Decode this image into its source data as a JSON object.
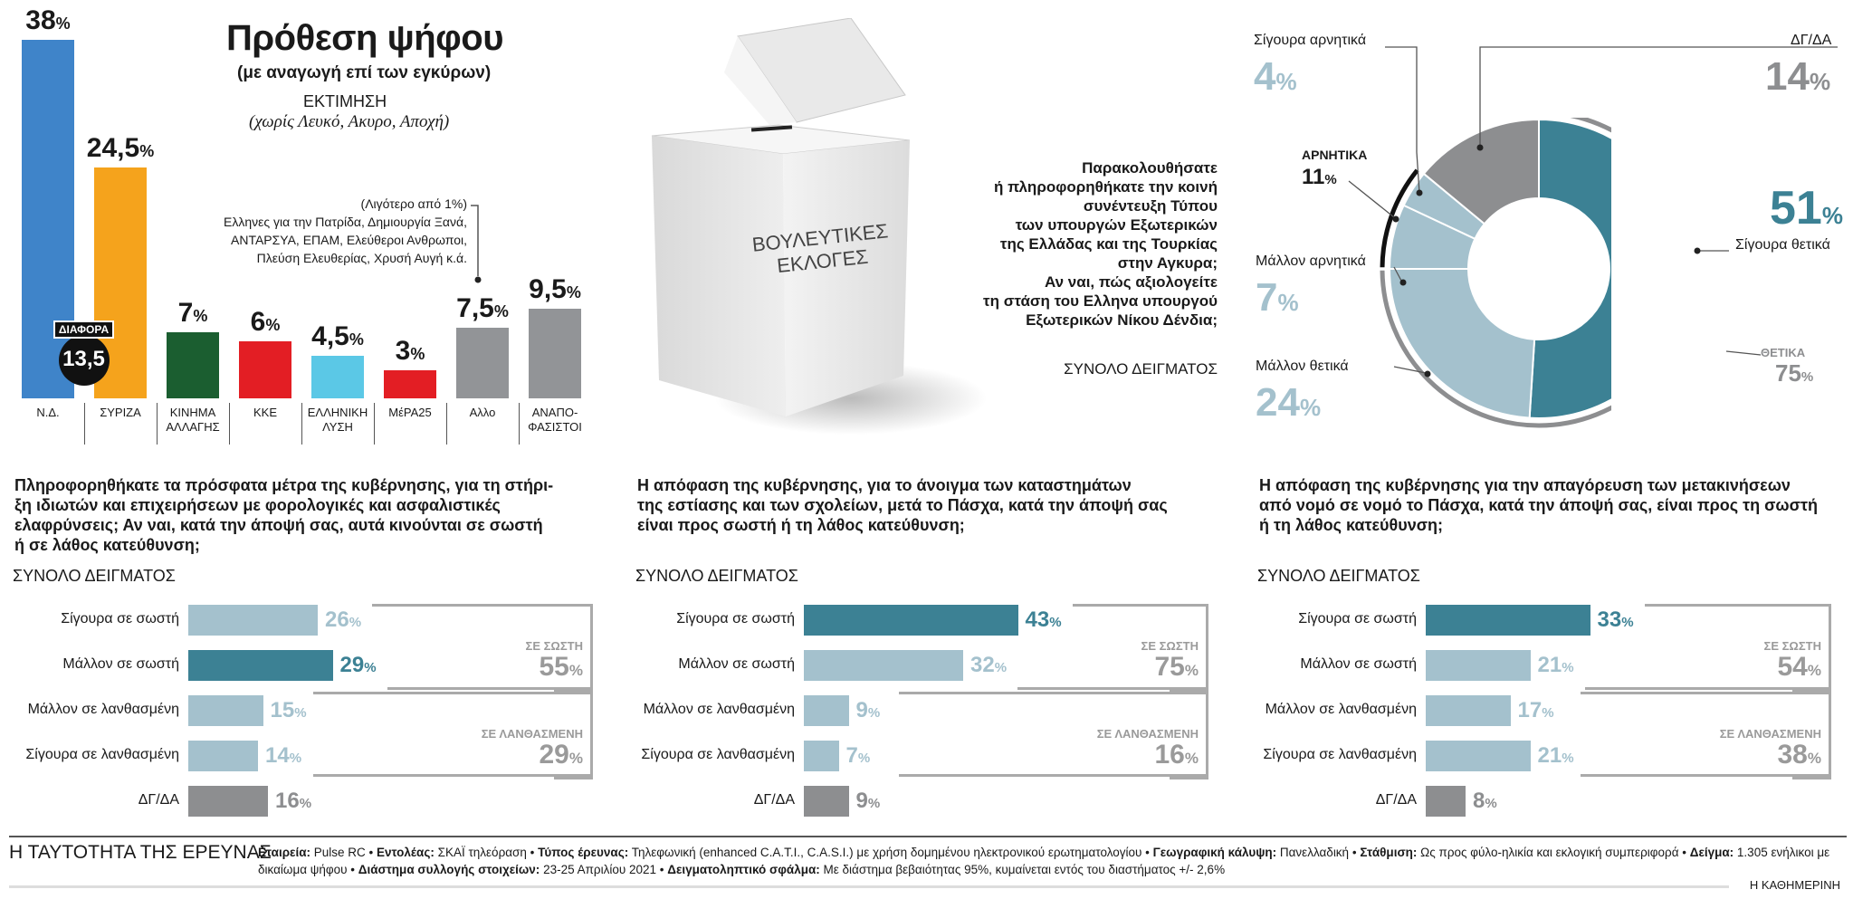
{
  "colors": {
    "nd": "#3f84c9",
    "syriza": "#f5a31c",
    "kinal": "#1b5e30",
    "kke": "#e31e24",
    "el": "#5bc8e6",
    "mera25": "#e31e24",
    "grey": "#929497",
    "teal": "#3c8194",
    "lightblue": "#a4c1cd",
    "darkgrey": "#8d8e90"
  },
  "header": {
    "title": "Πρόθεση ψήφου",
    "subtitle": "(με αναγωγή επί των εγκύρων)",
    "estimate": "ΕΚΤΙΜΗΣΗ",
    "note": "(χωρίς Λευκό, Ακυρο, Αποχή)"
  },
  "others_note": {
    "line1": "(Λιγότερο από 1%)",
    "line2": "Ελληνες για την Πατρίδα, Δημιουργία Ξανά,",
    "line3": "ΑΝΤΑΡΣΥΑ, ΕΠΑΜ, Ελεύθεροι Ανθρωποι,",
    "line4": "Πλεύση Ελευθερίας, Χρυσή Αυγή κ.ά."
  },
  "difference": {
    "label": "ΔΙΑΦΟΡΑ",
    "value": "13,5"
  },
  "chart_data": [
    {
      "type": "bar",
      "title": "Πρόθεση ψήφου",
      "categories": [
        "Ν.Δ.",
        "ΣΥΡΙΖΑ",
        "ΚΙΝΗΜΑ ΑΛΛΑΓΗΣ",
        "ΚΚΕ",
        "ΕΛΛΗΝΙΚΗ ΛΥΣΗ",
        "ΜέΡΑ25",
        "Αλλο",
        "ΑΝΑΠΟΦΑΣΙΣΤΟΙ"
      ],
      "category_lines": [
        [
          "Ν.Δ."
        ],
        [
          "ΣΥΡΙΖΑ"
        ],
        [
          "ΚΙΝΗΜΑ",
          "ΑΛΛΑΓΗΣ"
        ],
        [
          "ΚΚΕ"
        ],
        [
          "ΕΛΛΗΝΙΚΗ",
          "ΛΥΣΗ"
        ],
        [
          "ΜέΡΑ25"
        ],
        [
          "Αλλο"
        ],
        [
          "ΑΝΑΠΟ-",
          "ΦΑΣΙΣΤΟΙ"
        ]
      ],
      "values": [
        38,
        24.5,
        7,
        6,
        4.5,
        3,
        7.5,
        9.5
      ],
      "labels": [
        "38",
        "24,5",
        "7",
        "6",
        "4,5",
        "3",
        "7,5",
        "9,5"
      ],
      "colors": [
        "#3f84c9",
        "#f5a31c",
        "#1b5e30",
        "#e31e24",
        "#5bc8e6",
        "#e31e24",
        "#929497",
        "#929497"
      ],
      "unit": "%",
      "ylim": [
        0,
        38
      ]
    },
    {
      "type": "pie",
      "title": "Παρακολουθήσατε ή πληροφορηθήκατε την κοινή συνέντευξη Τύπου των υπουργών Εξωτερικών της Ελλάδας και της Τουρκίας στην Αγκυρα; Αν ναι, πώς αξιολογείτε τη στάση του Ελληνα υπουργού Εξωτερικών Νίκου Δένδια;",
      "categories": [
        "Σίγουρα θετικά",
        "Μάλλον θετικά",
        "Μάλλον αρνητικά",
        "Σίγουρα αρνητικά",
        "ΔΓ/ΔΑ"
      ],
      "values": [
        51,
        24,
        7,
        4,
        14
      ],
      "colors": [
        "#3c8194",
        "#a4c1cd",
        "#a4c1cd",
        "#a4c1cd",
        "#8d8e90"
      ],
      "groups": [
        {
          "label": "ΘΕΤΙΚΑ",
          "value": 75
        },
        {
          "label": "ΑΡΝΗΤΙΚΑ",
          "value": 11
        }
      ]
    },
    {
      "type": "bar",
      "orientation": "horizontal",
      "title": "Πληροφορηθήκατε τα πρόσφατα μέτρα της κυβέρνησης, για τη στήριξη ιδιωτών και επιχειρήσεων με φορολογικές και ασφαλιστικές ελαφρύνσεις; Αν ναι, κατά την άποψή σας, αυτά κινούνται σε σωστή ή σε λάθος κατεύθυνση;",
      "categories": [
        "Σίγουρα σε σωστή",
        "Μάλλον σε σωστή",
        "Μάλλον σε λανθασμένη",
        "Σίγουρα σε λανθασμένη",
        "ΔΓ/ΔΑ"
      ],
      "values": [
        26,
        29,
        15,
        14,
        16
      ],
      "highlight": 1,
      "groups": [
        {
          "label": "ΣΕ ΣΩΣΤΗ",
          "value": 55
        },
        {
          "label": "ΣΕ ΛΑΝΘΑΣΜΕΝΗ",
          "value": 29
        }
      ]
    },
    {
      "type": "bar",
      "orientation": "horizontal",
      "title": "Η απόφαση της κυβέρνησης, για το άνοιγμα των καταστημάτων της εστίασης και των σχολείων, μετά το Πάσχα, κατά την άποψή σας είναι προς σωστή ή τη λάθος κατεύθυνση;",
      "categories": [
        "Σίγουρα σε σωστή",
        "Μάλλον σε σωστή",
        "Μάλλον σε λανθασμένη",
        "Σίγουρα σε λανθασμένη",
        "ΔΓ/ΔΑ"
      ],
      "values": [
        43,
        32,
        9,
        7,
        9
      ],
      "highlight": 0,
      "groups": [
        {
          "label": "ΣΕ ΣΩΣΤΗ",
          "value": 75
        },
        {
          "label": "ΣΕ ΛΑΝΘΑΣΜΕΝΗ",
          "value": 16
        }
      ]
    },
    {
      "type": "bar",
      "orientation": "horizontal",
      "title": "Η απόφαση της κυβέρνησης για την απαγόρευση των μετακινήσεων από νομό σε νομό το Πάσχα, κατά την άποψή σας, είναι προς τη σωστή ή τη λάθος κατεύθυνση;",
      "categories": [
        "Σίγουρα σε σωστή",
        "Μάλλον σε σωστή",
        "Μάλλον σε λανθασμένη",
        "Σίγουρα σε λανθασμένη",
        "ΔΓ/ΔΑ"
      ],
      "values": [
        33,
        21,
        17,
        21,
        8
      ],
      "highlight": 0,
      "groups": [
        {
          "label": "ΣΕ ΣΩΣΤΗ",
          "value": 54
        },
        {
          "label": "ΣΕ ΛΑΝΘΑΣΜΕΝΗ",
          "value": 38
        }
      ]
    }
  ],
  "pct": "%",
  "sample_label": "ΣΥΝΟΛΟ ΔΕΙΓΜΑΤΟΣ",
  "ballot": {
    "line1": "ΒΟΥΛΕΥΤΙΚΕΣ",
    "line2": "ΕΚΛΟΓΕΣ"
  },
  "donut_question_lines": [
    "Παρακολουθήσατε",
    "ή πληροφορηθήκατε την κοινή",
    "συνέντευξη Τύπου",
    "των υπουργών Εξωτερικών",
    "της Ελλάδας και της Τουρκίας",
    "στην Αγκυρα;",
    "Αν ναι, πώς αξιολογείτε",
    "τη στάση του Ελληνα υπουργού",
    "Εξωτερικών Νίκου Δένδια;"
  ],
  "donut_labels": {
    "sig_arn": "Σίγουρα αρνητικά",
    "sig_arn_val": "4",
    "dgda": "ΔΓ/ΔΑ",
    "dgda_val": "14",
    "arn": "ΑΡΝΗΤΙΚΑ",
    "arn_val": "11",
    "sig_thet": "Σίγουρα θετικά",
    "sig_thet_val": "51",
    "mal_arn": "Μάλλον αρνητικά",
    "mal_arn_val": "7",
    "thet": "ΘΕΤΙΚΑ",
    "thet_val": "75",
    "mal_thet": "Μάλλον θετικά",
    "mal_thet_val": "24"
  },
  "h_questions": [
    [
      "Πληροφορηθήκατε τα πρόσφατα μέτρα της κυβέρνησης, για τη στήρι-",
      "ξη ιδιωτών και επιχειρήσεων με φορολογικές και ασφαλιστικές",
      "ελαφρύνσεις; Αν ναι, κατά την άποψή σας, αυτά κινούνται σε σωστή",
      "ή σε λάθος κατεύθυνση;"
    ],
    [
      "Η απόφαση της κυβέρνησης, για το άνοιγμα των καταστημάτων",
      "της εστίασης και των σχολείων, μετά το Πάσχα, κατά την άποψή σας",
      "είναι προς σωστή ή τη λάθος κατεύθυνση;"
    ],
    [
      "Η απόφαση της κυβέρνησης για την απαγόρευση των μετακινήσεων",
      "από νομό σε νομό το Πάσχα, κατά την άποψή σας, είναι προς τη σωστή",
      "ή τη λάθος κατεύθυνση;"
    ]
  ],
  "footer": {
    "title": "Η ΤΑΥΤΟΤΗΤΑ ΤΗΣ ΕΡΕΥΝΑΣ",
    "k1": "Εταιρεία:",
    "v1": " Pulse RC • ",
    "k2": "Εντολέας:",
    "v2": " ΣΚΑΪ τηλεόραση • ",
    "k3": "Τύπος έρευνας:",
    "v3": " Τηλεφωνική (enhanced C.A.T.I., C.A.S.I.) με χρήση δομημένου ηλεκτρονικού ερωτηματολογίου • ",
    "k4": "Γεωγραφική κάλυψη:",
    "v4": " Πανελλαδική • ",
    "k5": "Στάθμιση:",
    "v5": " Ως προς φύλο-ηλικία και εκλογική συμπεριφορά • ",
    "k6": "Δείγμα:",
    "v6": " 1.305 ενήλικοι με δικαίωμα ψήφου • ",
    "k7": "Διάστημα συλλογής στοιχείων:",
    "v7": " 23-25 Απριλίου 2021 • ",
    "k8": "Δειγματοληπτικό  σφάλμα:",
    "v8": " Με διάστημα βεβαιότητας 95%, κυμαίνεται εντός του διαστήματος +/- 2,6%",
    "brand": "Η ΚΑΘΗΜΕΡΙΝΗ"
  }
}
